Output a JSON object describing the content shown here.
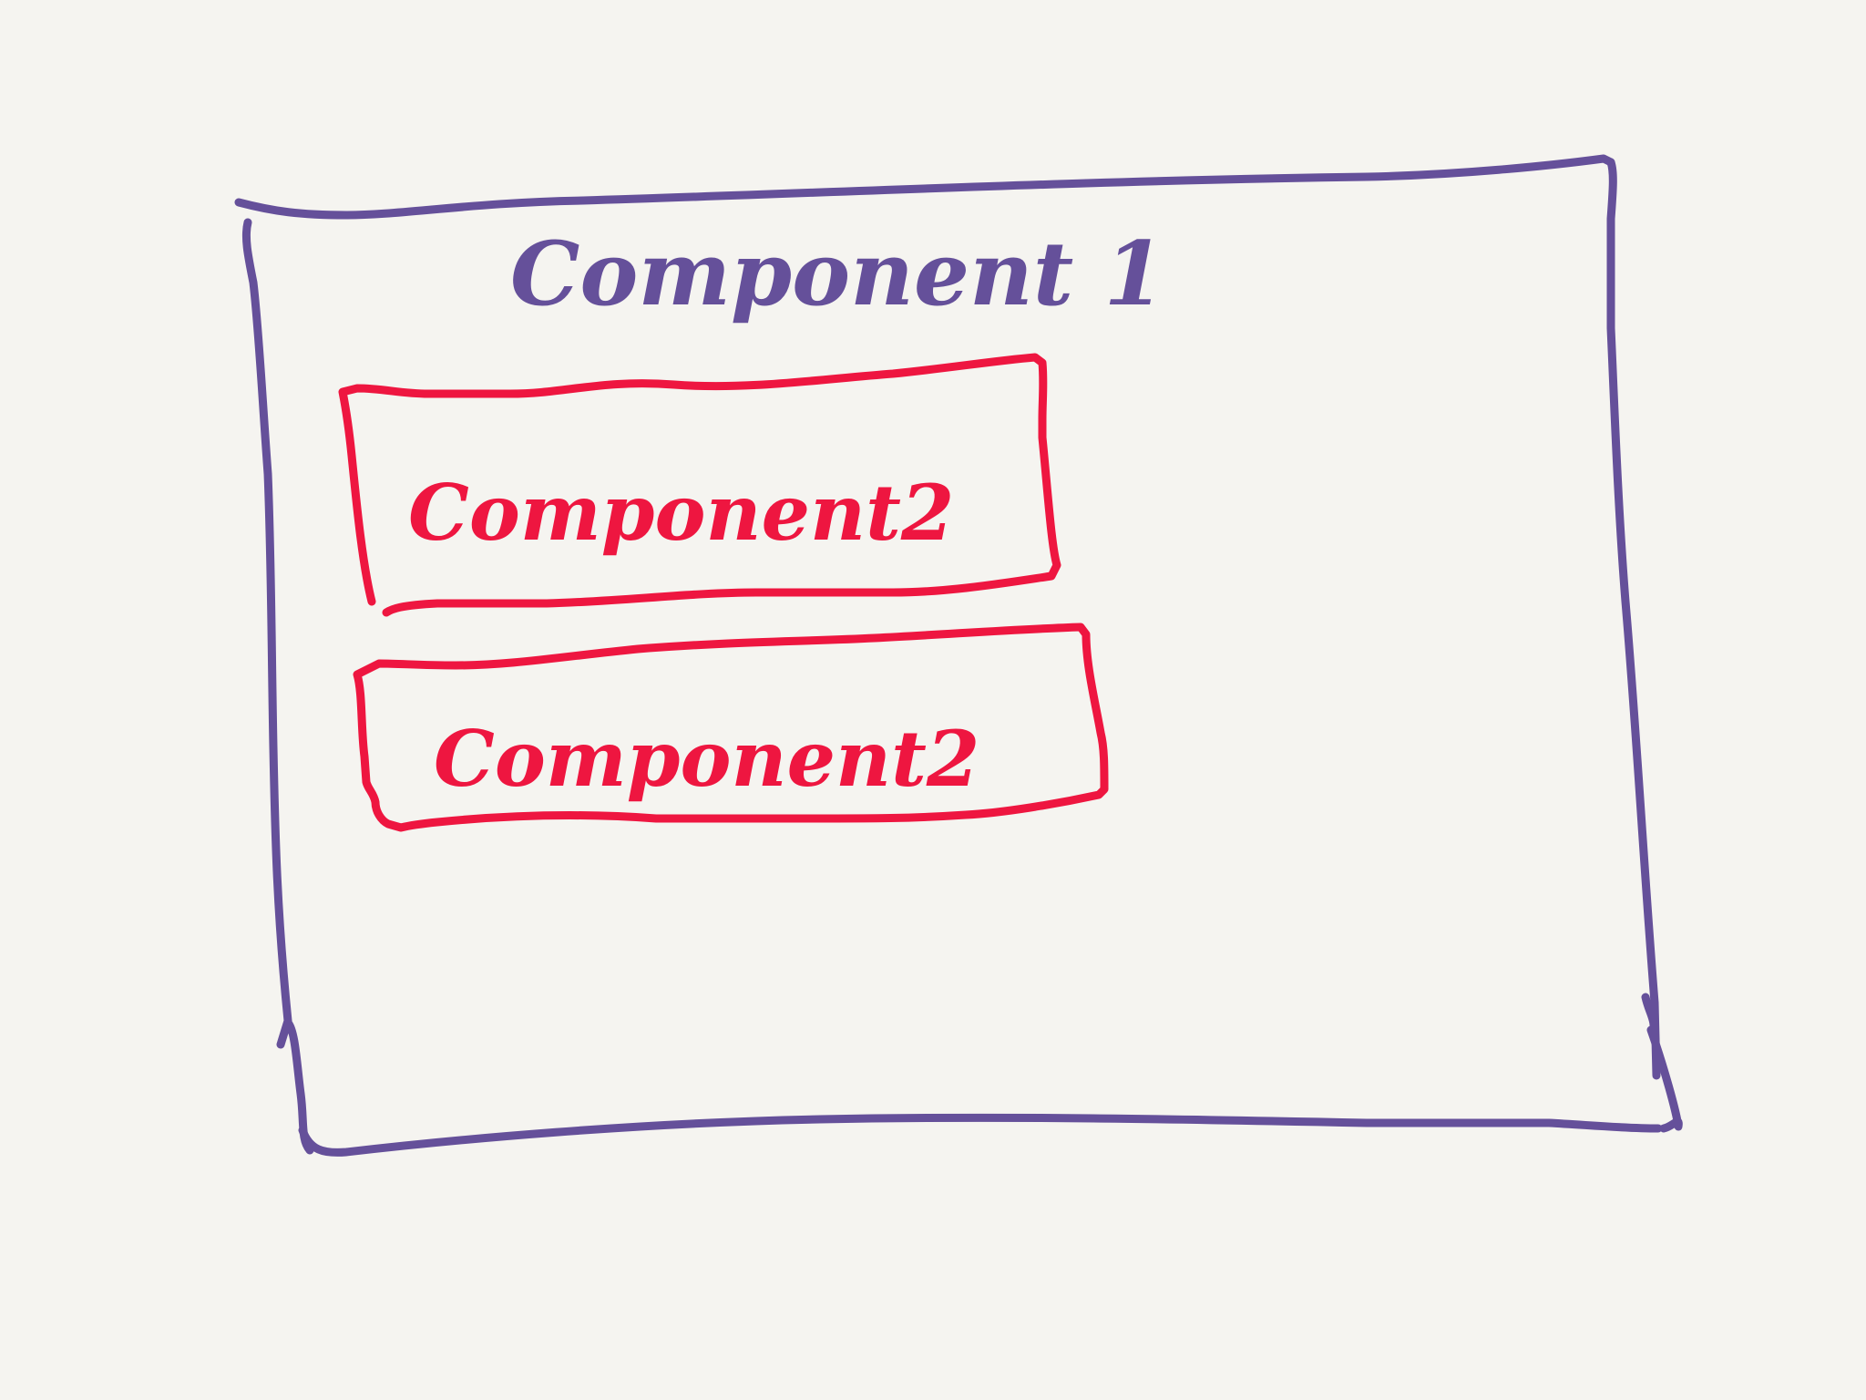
{
  "diagram": {
    "outer_component": {
      "label": "Component 1",
      "color": "#65509a"
    },
    "inner_components": [
      {
        "label": "Component2",
        "color": "#ee1640"
      },
      {
        "label": "Component2",
        "color": "#ee1640"
      }
    ],
    "background": "#f5f4f0"
  }
}
